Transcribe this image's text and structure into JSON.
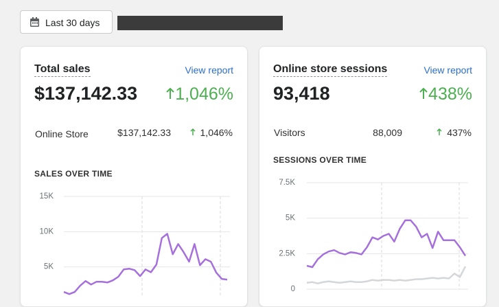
{
  "toolbar": {
    "date_button": "Last 30 days"
  },
  "cards": [
    {
      "title": "Total sales",
      "link": "View report",
      "value": "$137,142.33",
      "change": "1,046%",
      "breakdown": {
        "label": "Online Store",
        "value": "$137,142.33",
        "change": "1,046%"
      },
      "chart": {
        "type": "line",
        "title": "SALES OVER TIME",
        "ylim": [
          0,
          15000
        ],
        "yticks": [
          {
            "value": 5000,
            "label": "5K"
          },
          {
            "value": 10000,
            "label": "10K"
          },
          {
            "value": 15000,
            "label": "15K"
          }
        ],
        "grid": true,
        "series": [
          {
            "color": "#a56fdc",
            "values": [
              1450,
              1150,
              1450,
              2350,
              3000,
              2500,
              2900,
              2900,
              2800,
              3100,
              3600,
              4650,
              4750,
              4550,
              3700,
              4650,
              4250,
              5350,
              9100,
              9700,
              6800,
              8250,
              7100,
              5750,
              8250,
              5250,
              6100,
              5750,
              4200,
              3300,
              3200
            ]
          }
        ]
      }
    },
    {
      "title": "Online store sessions",
      "link": "View report",
      "value": "93,418",
      "change": "438%",
      "breakdown": {
        "label": "Visitors",
        "value": "88,009",
        "change": "437%"
      },
      "chart": {
        "type": "line",
        "title": "SESSIONS OVER TIME",
        "ylim": [
          0,
          7500
        ],
        "yticks": [
          0,
          {
            "value": 2500,
            "label": "2.5K"
          },
          {
            "value": 5000,
            "label": "5K"
          },
          {
            "value": 7500,
            "label": "7.5K"
          }
        ],
        "grid": true,
        "series": [
          {
            "color": "#a56fdc",
            "values": [
              1650,
              1550,
              2100,
              2450,
              2650,
              2750,
              2550,
              2450,
              2600,
              2550,
              2450,
              2950,
              3650,
              3500,
              3750,
              3900,
              3350,
              4250,
              4850,
              4850,
              4400,
              3650,
              3900,
              2900,
              4050,
              3450,
              3450,
              3450,
              2950,
              2350
            ]
          },
          {
            "color": "#d4d6d9",
            "values": [
              450,
              500,
              400,
              500,
              550,
              500,
              450,
              500,
              550,
              500,
              500,
              550,
              650,
              600,
              650,
              650,
              600,
              650,
              600,
              650,
              700,
              700,
              750,
              800,
              750,
              800,
              750,
              1100,
              850,
              1600
            ]
          }
        ]
      }
    }
  ]
}
